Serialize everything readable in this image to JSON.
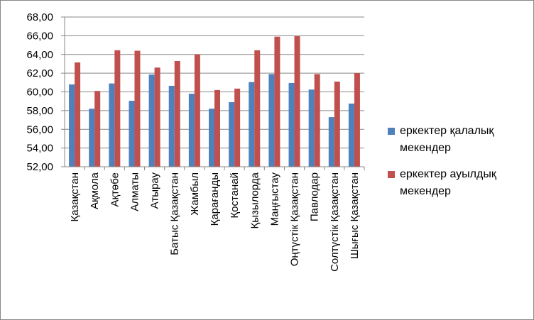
{
  "chart_data": {
    "type": "bar",
    "categories": [
      "Қазақстан",
      "Ақмола",
      "Ақтөбе",
      "Алматы",
      "Атырау",
      "Батыс Қазақстан",
      "Жамбыл",
      "Қарағанды",
      "Қостанай",
      "Қызылорда",
      "Маңғыстау",
      "Оңтүстік Қазақстан",
      "Павлодар",
      "Солтүстік Қазақстан",
      "Шығыс Қазақстан"
    ],
    "series": [
      {
        "name": "еркектер  қалалық мекендер",
        "color": "#4f81bd",
        "values": [
          60.8,
          58.2,
          60.9,
          59.05,
          61.85,
          60.65,
          59.8,
          58.2,
          58.9,
          61.05,
          61.9,
          60.95,
          60.25,
          57.3,
          58.75
        ]
      },
      {
        "name": "еркектер ауылдық мекендер",
        "color": "#c0504d",
        "values": [
          63.15,
          60.1,
          64.45,
          64.4,
          62.6,
          63.3,
          64.0,
          60.2,
          60.35,
          64.45,
          65.9,
          65.95,
          61.9,
          61.1,
          62.0
        ]
      }
    ],
    "ylim": [
      52,
      68
    ],
    "yticks": [
      {
        "value": 52,
        "label": "52,00"
      },
      {
        "value": 54,
        "label": "54,00"
      },
      {
        "value": 56,
        "label": "56,00"
      },
      {
        "value": 58,
        "label": "58,00"
      },
      {
        "value": 60,
        "label": "60,00"
      },
      {
        "value": 62,
        "label": "62,00"
      },
      {
        "value": 64,
        "label": "64,00"
      },
      {
        "value": 66,
        "label": "66,00"
      },
      {
        "value": 68,
        "label": "68,00"
      }
    ],
    "grid": true,
    "legend": "right"
  }
}
